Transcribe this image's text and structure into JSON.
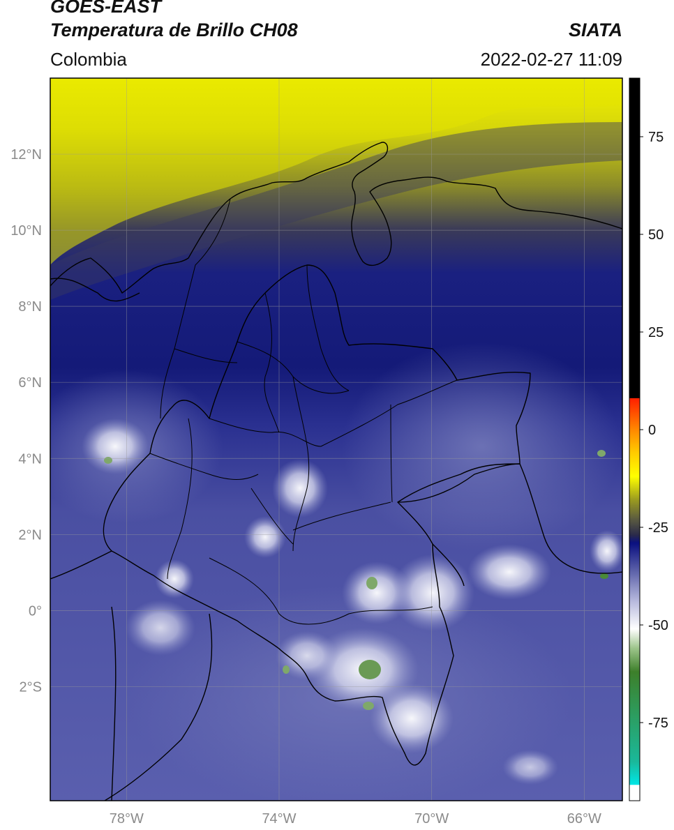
{
  "header": {
    "satellite": "GOES-EAST",
    "product": "Temperatura de Brillo CH08",
    "organization": "SIATA",
    "region": "Colombia",
    "timestamp": "2022-02-27 11:09"
  },
  "map": {
    "lon_range": [
      -80,
      -65
    ],
    "lat_range": [
      -5,
      14
    ],
    "lat_ticks": [
      {
        "value": 12,
        "label": "12°N"
      },
      {
        "value": 10,
        "label": "10°N"
      },
      {
        "value": 8,
        "label": "8°N"
      },
      {
        "value": 6,
        "label": "6°N"
      },
      {
        "value": 4,
        "label": "4°N"
      },
      {
        "value": 2,
        "label": "2°N"
      },
      {
        "value": 0,
        "label": "0°"
      },
      {
        "value": -2,
        "label": "2°S"
      }
    ],
    "lon_ticks": [
      {
        "value": -78,
        "label": "78°W"
      },
      {
        "value": -74,
        "label": "74°W"
      },
      {
        "value": -70,
        "label": "70°W"
      },
      {
        "value": -66,
        "label": "66°W"
      }
    ],
    "colors": {
      "dry_yellow": "#f2f200",
      "olive": "#8a8a2a",
      "dark_navy": "#141a78",
      "mid_blue": "#3a3f98",
      "light_slate": "#6f74b4",
      "cloud_white": "#f4f4fb",
      "cold_green": "#6a9a55"
    }
  },
  "colorbar": {
    "range": [
      -95,
      90
    ],
    "ticks": [
      {
        "value": 75,
        "label": "75"
      },
      {
        "value": 50,
        "label": "50"
      },
      {
        "value": 25,
        "label": "25"
      },
      {
        "value": 0,
        "label": "0"
      },
      {
        "value": -25,
        "label": "-25"
      },
      {
        "value": -50,
        "label": "-50"
      },
      {
        "value": -75,
        "label": "-75"
      }
    ],
    "stops": [
      {
        "value": -95,
        "color": "#ffffff"
      },
      {
        "value": -91,
        "color": "#ffffff"
      },
      {
        "value": -90.9,
        "color": "#00e6e6"
      },
      {
        "value": -85,
        "color": "#1ab89a"
      },
      {
        "value": -72,
        "color": "#2e9a5a"
      },
      {
        "value": -62,
        "color": "#3d7f2a"
      },
      {
        "value": -56,
        "color": "#9cc48a"
      },
      {
        "value": -51,
        "color": "#ffffff"
      },
      {
        "value": -44,
        "color": "#b8bade"
      },
      {
        "value": -36,
        "color": "#5a5fa8"
      },
      {
        "value": -29,
        "color": "#0a1080"
      },
      {
        "value": -27,
        "color": "#2a2a4a"
      },
      {
        "value": -23,
        "color": "#5a5a40"
      },
      {
        "value": -18,
        "color": "#9a9a20"
      },
      {
        "value": -12,
        "color": "#ffff00"
      },
      {
        "value": -6,
        "color": "#ffcc00"
      },
      {
        "value": 0,
        "color": "#ff8800"
      },
      {
        "value": 8,
        "color": "#ff2000"
      },
      {
        "value": 8.1,
        "color": "#000000"
      },
      {
        "value": 90,
        "color": "#000000"
      }
    ]
  }
}
